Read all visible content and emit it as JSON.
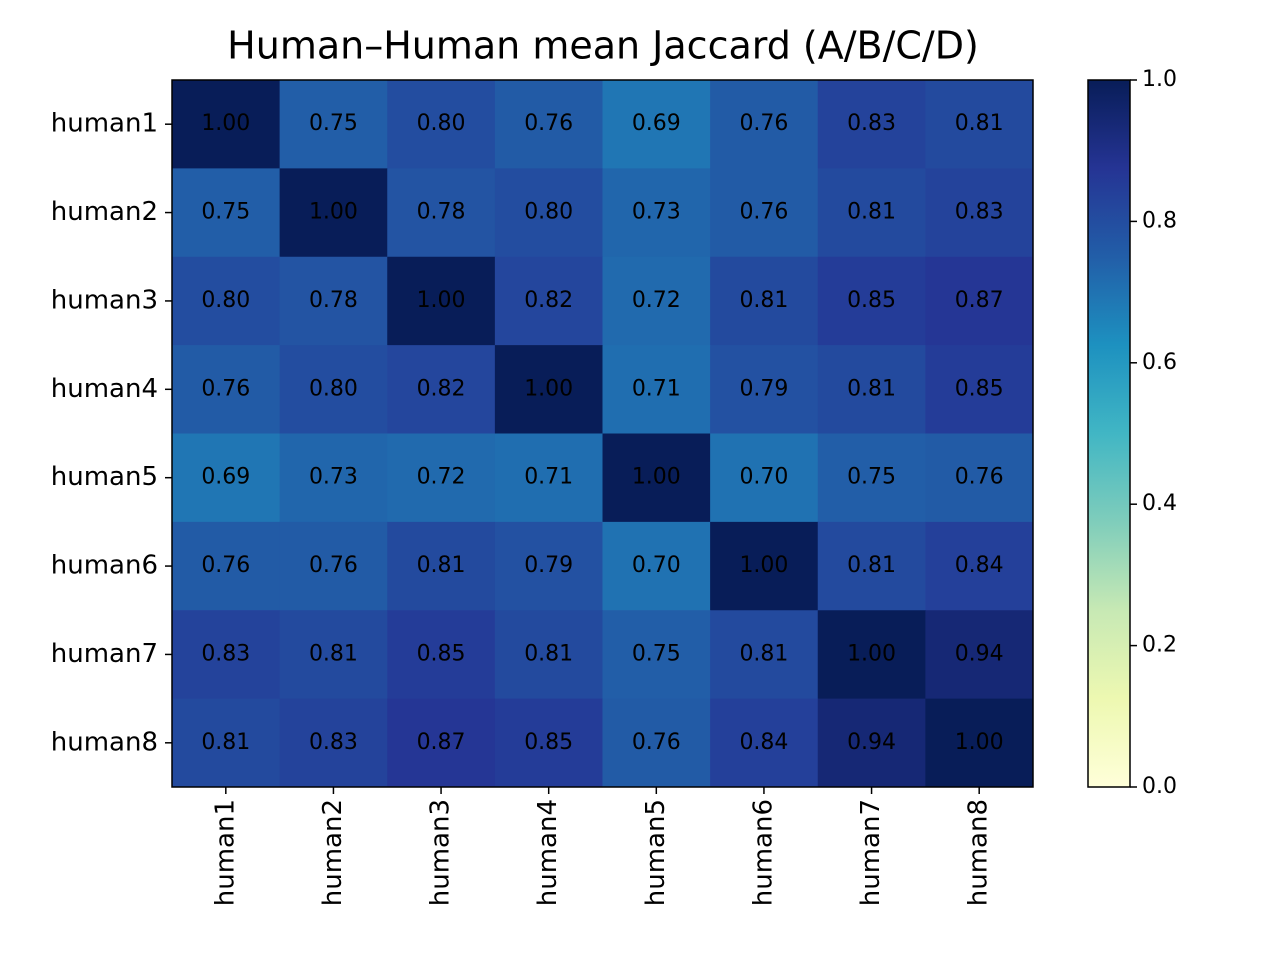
{
  "chart_data": {
    "type": "heatmap",
    "title": "Human–Human mean Jaccard (A/B/C/D)",
    "x_categories": [
      "human1",
      "human2",
      "human3",
      "human4",
      "human5",
      "human6",
      "human7",
      "human8"
    ],
    "y_categories": [
      "human1",
      "human2",
      "human3",
      "human4",
      "human5",
      "human6",
      "human7",
      "human8"
    ],
    "values": [
      [
        1.0,
        0.75,
        0.8,
        0.76,
        0.69,
        0.76,
        0.83,
        0.81
      ],
      [
        0.75,
        1.0,
        0.78,
        0.8,
        0.73,
        0.76,
        0.81,
        0.83
      ],
      [
        0.8,
        0.78,
        1.0,
        0.82,
        0.72,
        0.81,
        0.85,
        0.87
      ],
      [
        0.76,
        0.8,
        0.82,
        1.0,
        0.71,
        0.79,
        0.81,
        0.85
      ],
      [
        0.69,
        0.73,
        0.72,
        0.71,
        1.0,
        0.7,
        0.75,
        0.76
      ],
      [
        0.76,
        0.76,
        0.81,
        0.79,
        0.7,
        1.0,
        0.81,
        0.84
      ],
      [
        0.83,
        0.81,
        0.85,
        0.81,
        0.75,
        0.81,
        1.0,
        0.94
      ],
      [
        0.81,
        0.83,
        0.87,
        0.85,
        0.76,
        0.84,
        0.94,
        1.0
      ]
    ],
    "value_labels": [
      [
        "1.00",
        "0.75",
        "0.80",
        "0.76",
        "0.69",
        "0.76",
        "0.83",
        "0.81"
      ],
      [
        "0.75",
        "1.00",
        "0.78",
        "0.80",
        "0.73",
        "0.76",
        "0.81",
        "0.83"
      ],
      [
        "0.80",
        "0.78",
        "1.00",
        "0.82",
        "0.72",
        "0.81",
        "0.85",
        "0.87"
      ],
      [
        "0.76",
        "0.80",
        "0.82",
        "1.00",
        "0.71",
        "0.79",
        "0.81",
        "0.85"
      ],
      [
        "0.69",
        "0.73",
        "0.72",
        "0.71",
        "1.00",
        "0.70",
        "0.75",
        "0.76"
      ],
      [
        "0.76",
        "0.76",
        "0.81",
        "0.79",
        "0.70",
        "1.00",
        "0.81",
        "0.84"
      ],
      [
        "0.83",
        "0.81",
        "0.85",
        "0.81",
        "0.75",
        "0.81",
        "1.00",
        "0.94"
      ],
      [
        "0.81",
        "0.83",
        "0.87",
        "0.85",
        "0.76",
        "0.84",
        "0.94",
        "1.00"
      ]
    ],
    "colormap": "YlGnBu",
    "zlim": [
      0,
      1
    ],
    "zticks": [
      {
        "value": 0,
        "label": "0.0"
      },
      {
        "value": 0.2,
        "label": "0.2"
      },
      {
        "value": 0.4,
        "label": "0.4"
      },
      {
        "value": 0.6,
        "label": "0.6"
      },
      {
        "value": 0.8,
        "label": "0.8"
      },
      {
        "value": 1,
        "label": "1.0"
      }
    ]
  }
}
